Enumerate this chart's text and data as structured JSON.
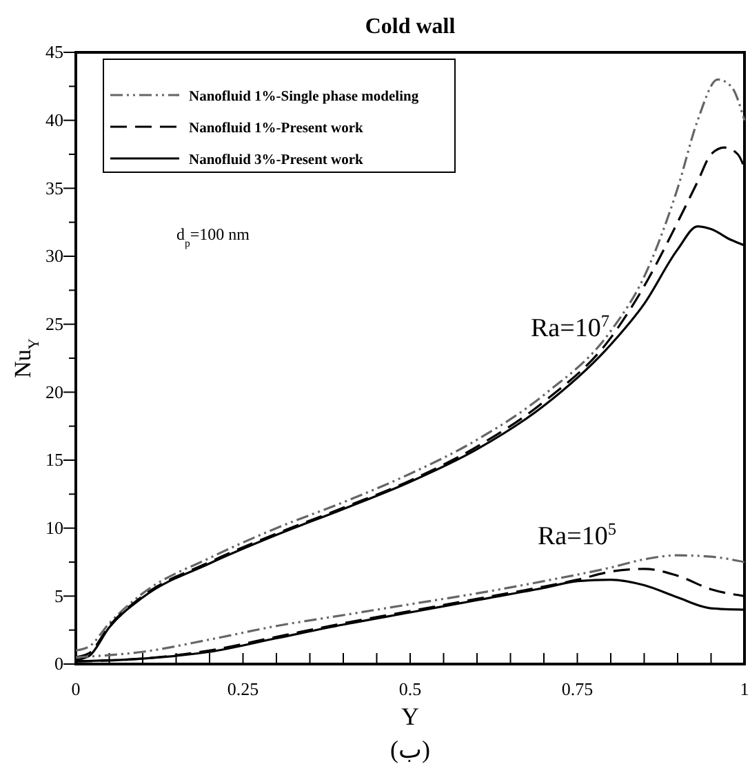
{
  "chart_data": {
    "type": "line",
    "title": "Cold wall",
    "xlabel": "Y",
    "ylabel": "Nu$_{Y}$",
    "xlim": [
      0,
      1
    ],
    "ylim": [
      0,
      45
    ],
    "xticks": [
      0,
      {
        "value": 0.05,
        "label": null
      },
      {
        "value": 0.1,
        "label": null
      },
      {
        "value": 0.15,
        "label": null
      },
      {
        "value": 0.2,
        "label": null
      },
      0.25,
      {
        "value": 0.3,
        "label": null
      },
      {
        "value": 0.35,
        "label": null
      },
      {
        "value": 0.4,
        "label": null
      },
      {
        "value": 0.45,
        "label": null
      },
      0.5,
      {
        "value": 0.55,
        "label": null
      },
      {
        "value": 0.6,
        "label": null
      },
      {
        "value": 0.65,
        "label": null
      },
      {
        "value": 0.7,
        "label": null
      },
      0.75,
      {
        "value": 0.8,
        "label": null
      },
      {
        "value": 0.85,
        "label": null
      },
      {
        "value": 0.9,
        "label": null
      },
      {
        "value": 0.95,
        "label": null
      },
      1
    ],
    "yticks": [
      0,
      {
        "value": 2.5,
        "label": null
      },
      5,
      {
        "value": 7.5,
        "label": null
      },
      10,
      {
        "value": 12.5,
        "label": null
      },
      15,
      {
        "value": 17.5,
        "label": null
      },
      20,
      {
        "value": 22.5,
        "label": null
      },
      25,
      {
        "value": 27.5,
        "label": null
      },
      30,
      {
        "value": 32.5,
        "label": null
      },
      35,
      {
        "value": 37.5,
        "label": null
      },
      40,
      {
        "value": 42.5,
        "label": null
      },
      45
    ],
    "grid": false,
    "legend": "top left",
    "marker": "none",
    "series": [
      {
        "name": "Nanofluid 1%-Single phase modeling",
        "color": "#666666",
        "line_style": "dotted",
        "x": [
          0,
          0.02,
          0.05,
          0.1,
          0.2,
          0.3,
          0.4,
          0.5,
          0.6,
          0.7,
          0.8,
          0.85,
          0.9,
          0.93,
          0.96,
          0.98,
          1
        ],
        "values": [
          1.0,
          1.3,
          3.0,
          5.2,
          7.8,
          10,
          11.9,
          14,
          16.5,
          19.8,
          24.5,
          28.5,
          35,
          40,
          43,
          42.5,
          40
        ]
      },
      {
        "name": "Nanofluid 1%-Present work",
        "color": "#000000",
        "line_style": "dashed",
        "x": [
          0,
          0.02,
          0.05,
          0.1,
          0.2,
          0.3,
          0.4,
          0.5,
          0.6,
          0.7,
          0.8,
          0.85,
          0.9,
          0.93,
          0.95,
          0.97,
          0.99,
          1
        ],
        "values": [
          0.5,
          0.8,
          2.8,
          5,
          7.5,
          9.6,
          11.5,
          13.5,
          16,
          19.3,
          24,
          27.8,
          32.5,
          35.5,
          37.5,
          38,
          37.5,
          36.5
        ]
      },
      {
        "name": "Nanofluid 3%-Present work",
        "color": "#000000",
        "line_style": "solid",
        "x": [
          0,
          0.02,
          0.05,
          0.1,
          0.2,
          0.3,
          0.4,
          0.5,
          0.6,
          0.7,
          0.8,
          0.85,
          0.9,
          0.93,
          0.95,
          0.98,
          1
        ],
        "values": [
          0.3,
          0.6,
          2.7,
          4.9,
          7.4,
          9.5,
          11.4,
          13.4,
          15.8,
          19.0,
          23.5,
          26.5,
          30.5,
          32.2,
          32,
          31.2,
          30.8
        ]
      },
      {
        "color": "#666666",
        "line_style": "dotted",
        "x": [
          0,
          0.1,
          0.2,
          0.3,
          0.4,
          0.5,
          0.6,
          0.7,
          0.8,
          0.85,
          0.9,
          0.95,
          1
        ],
        "values": [
          0.5,
          0.9,
          1.8,
          2.8,
          3.6,
          4.4,
          5.2,
          6.1,
          7.1,
          7.7,
          8.0,
          7.9,
          7.5
        ]
      },
      {
        "color": "#000000",
        "line_style": "dashed",
        "x": [
          0,
          0.1,
          0.2,
          0.3,
          0.4,
          0.5,
          0.6,
          0.7,
          0.75,
          0.8,
          0.85,
          0.9,
          0.95,
          1
        ],
        "values": [
          0.2,
          0.4,
          1.0,
          2.0,
          3.0,
          3.9,
          4.8,
          5.7,
          6.2,
          6.8,
          7.0,
          6.5,
          5.5,
          5.0
        ]
      },
      {
        "color": "#000000",
        "line_style": "solid",
        "x": [
          0,
          0.1,
          0.2,
          0.3,
          0.4,
          0.5,
          0.6,
          0.7,
          0.75,
          0.8,
          0.85,
          0.9,
          0.95,
          1
        ],
        "values": [
          0.2,
          0.4,
          0.9,
          1.9,
          2.9,
          3.8,
          4.7,
          5.6,
          6.1,
          6.2,
          5.8,
          4.9,
          4.1,
          4.0
        ]
      }
    ],
    "annotations": [
      "Ra=10$^{7}$",
      "Ra=10$^{5}$",
      "d$_{p}$=100 nm",
      "(ب)"
    ]
  }
}
